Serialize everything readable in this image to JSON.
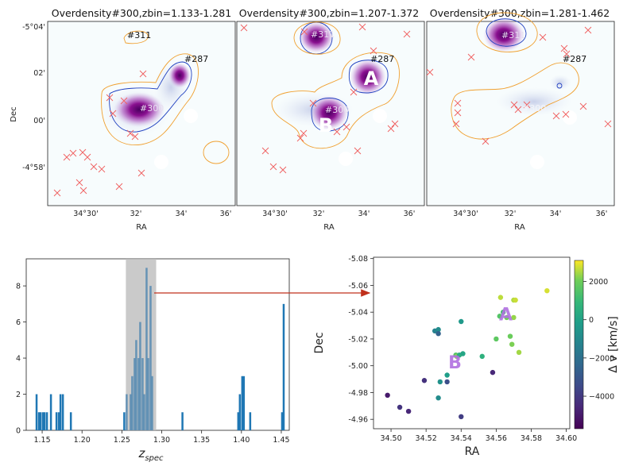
{
  "figure": {
    "colors": {
      "contour": "#f0a030",
      "contour_inner": "#2040c0",
      "density": "#5a0070",
      "cross": "#f06060",
      "bar": "#1f77b4",
      "shade": "#bdbdbd",
      "arrow": "#c0301c",
      "label": "#b070e0"
    }
  },
  "chart_data": [
    {
      "type": "heatmap",
      "title": "Overdensity#300,zbin=1.133-1.281",
      "xlabel": "RA",
      "ylabel": "Dec",
      "xticks": [
        "34°30'",
        "32'",
        "34'",
        "36'"
      ],
      "yticks": [
        "-5°04'",
        "02'",
        "00'",
        "-4°58'"
      ],
      "labels": [
        "#311",
        "#287",
        "#300"
      ]
    },
    {
      "type": "heatmap",
      "title": "Overdensity#300,zbin=1.207-1.372",
      "xlabel": "RA",
      "xticks": [
        "34°30'",
        "32'",
        "34'",
        "36'"
      ],
      "labels": [
        "#311",
        "#287",
        "#300"
      ],
      "markers": [
        "A",
        "B"
      ]
    },
    {
      "type": "heatmap",
      "title": "Overdensity#300,zbin=1.281-1.462",
      "xlabel": "RA",
      "xticks": [
        "34°30'",
        "32'",
        "34'",
        "36'"
      ],
      "labels": [
        "#311",
        "#287",
        "#300"
      ]
    },
    {
      "type": "bar",
      "xlabel": "z",
      "xlabel_sub": "spec",
      "xlim": [
        1.13,
        1.46
      ],
      "ylim": [
        0,
        9.5
      ],
      "xticks": [
        1.15,
        1.2,
        1.25,
        1.3,
        1.35,
        1.4,
        1.45
      ],
      "yticks": [
        0,
        2,
        4,
        6,
        8
      ],
      "shaded_range": [
        1.255,
        1.293
      ],
      "bin_width": 0.0025,
      "bins": [
        {
          "x": 1.143,
          "y": 2
        },
        {
          "x": 1.146,
          "y": 1
        },
        {
          "x": 1.148,
          "y": 1
        },
        {
          "x": 1.151,
          "y": 1
        },
        {
          "x": 1.153,
          "y": 1
        },
        {
          "x": 1.156,
          "y": 1
        },
        {
          "x": 1.161,
          "y": 2
        },
        {
          "x": 1.168,
          "y": 1
        },
        {
          "x": 1.171,
          "y": 1
        },
        {
          "x": 1.173,
          "y": 2
        },
        {
          "x": 1.176,
          "y": 2
        },
        {
          "x": 1.186,
          "y": 1
        },
        {
          "x": 1.253,
          "y": 1
        },
        {
          "x": 1.256,
          "y": 2
        },
        {
          "x": 1.261,
          "y": 2
        },
        {
          "x": 1.263,
          "y": 3
        },
        {
          "x": 1.266,
          "y": 4
        },
        {
          "x": 1.268,
          "y": 5
        },
        {
          "x": 1.271,
          "y": 4
        },
        {
          "x": 1.273,
          "y": 6
        },
        {
          "x": 1.276,
          "y": 4
        },
        {
          "x": 1.278,
          "y": 2
        },
        {
          "x": 1.281,
          "y": 9
        },
        {
          "x": 1.283,
          "y": 4
        },
        {
          "x": 1.286,
          "y": 8
        },
        {
          "x": 1.288,
          "y": 3
        },
        {
          "x": 1.326,
          "y": 1
        },
        {
          "x": 1.396,
          "y": 1
        },
        {
          "x": 1.398,
          "y": 2
        },
        {
          "x": 1.401,
          "y": 3
        },
        {
          "x": 1.403,
          "y": 3
        },
        {
          "x": 1.411,
          "y": 1
        },
        {
          "x": 1.451,
          "y": 1
        },
        {
          "x": 1.453,
          "y": 7
        }
      ]
    },
    {
      "type": "scatter",
      "xlabel": "RA",
      "ylabel": "Dec",
      "xlim": [
        34.49,
        34.602
      ],
      "ylim": [
        -4.953,
        -5.081
      ],
      "xticks": [
        "34.50",
        "34.52",
        "34.54",
        "34.56",
        "34.58",
        "34.60"
      ],
      "yticks": [
        "-5.08",
        "-5.06",
        "-5.04",
        "-5.02",
        "-5.00",
        "-4.98",
        "-4.96"
      ],
      "ytick_values": [
        -5.08,
        -5.06,
        -5.04,
        -5.02,
        -5.0,
        -4.98,
        -4.96
      ],
      "xtick_values": [
        34.5,
        34.52,
        34.54,
        34.56,
        34.58,
        34.6
      ],
      "colorbar": {
        "label": "Δ v [km/s]",
        "range": [
          -5700,
          3100
        ],
        "ticks": [
          2000,
          0,
          -2000,
          -4000
        ],
        "tick_labels": [
          "2000",
          "0",
          "−2000",
          "−4000"
        ]
      },
      "annotations": [
        {
          "text": "A",
          "ra": 34.5655,
          "dec": -5.034
        },
        {
          "text": "B",
          "ra": 34.5365,
          "dec": -4.998
        }
      ],
      "points": [
        {
          "ra": 34.589,
          "dec": -5.056,
          "dv": 2800
        },
        {
          "ra": 34.5625,
          "dec": -5.051,
          "dv": 2600
        },
        {
          "ra": 34.57,
          "dec": -5.049,
          "dv": 2500
        },
        {
          "ra": 34.571,
          "dec": -5.049,
          "dv": 2700
        },
        {
          "ra": 34.564,
          "dec": -5.04,
          "dv": 1200
        },
        {
          "ra": 34.562,
          "dec": -5.037,
          "dv": 1500
        },
        {
          "ra": 34.566,
          "dec": -5.036,
          "dv": 2000
        },
        {
          "ra": 34.57,
          "dec": -5.036,
          "dv": 2300
        },
        {
          "ra": 34.569,
          "dec": -5.016,
          "dv": 2100
        },
        {
          "ra": 34.568,
          "dec": -5.022,
          "dv": 1900
        },
        {
          "ra": 34.56,
          "dec": -5.02,
          "dv": 1700
        },
        {
          "ra": 34.573,
          "dec": -5.01,
          "dv": 2400
        },
        {
          "ra": 34.552,
          "dec": -5.007,
          "dv": 600
        },
        {
          "ra": 34.54,
          "dec": -5.033,
          "dv": -400
        },
        {
          "ra": 34.525,
          "dec": -5.026,
          "dv": -1300
        },
        {
          "ra": 34.527,
          "dec": -5.027,
          "dv": -900
        },
        {
          "ra": 34.527,
          "dec": -5.024,
          "dv": -2600
        },
        {
          "ra": 34.537,
          "dec": -5.008,
          "dv": 1500
        },
        {
          "ra": 34.5375,
          "dec": -5.007,
          "dv": 2200
        },
        {
          "ra": 34.539,
          "dec": -5.008,
          "dv": 400
        },
        {
          "ra": 34.541,
          "dec": -5.009,
          "dv": 100
        },
        {
          "ra": 34.528,
          "dec": -4.988,
          "dv": -700
        },
        {
          "ra": 34.532,
          "dec": -4.993,
          "dv": -200
        },
        {
          "ra": 34.532,
          "dec": -4.988,
          "dv": -3300
        },
        {
          "ra": 34.558,
          "dec": -4.995,
          "dv": -4600
        },
        {
          "ra": 34.519,
          "dec": -4.989,
          "dv": -4300
        },
        {
          "ra": 34.527,
          "dec": -4.976,
          "dv": -900
        },
        {
          "ra": 34.498,
          "dec": -4.978,
          "dv": -5000
        },
        {
          "ra": 34.505,
          "dec": -4.969,
          "dv": -4200
        },
        {
          "ra": 34.51,
          "dec": -4.966,
          "dv": -4600
        },
        {
          "ra": 34.54,
          "dec": -4.962,
          "dv": -3900
        }
      ]
    }
  ]
}
